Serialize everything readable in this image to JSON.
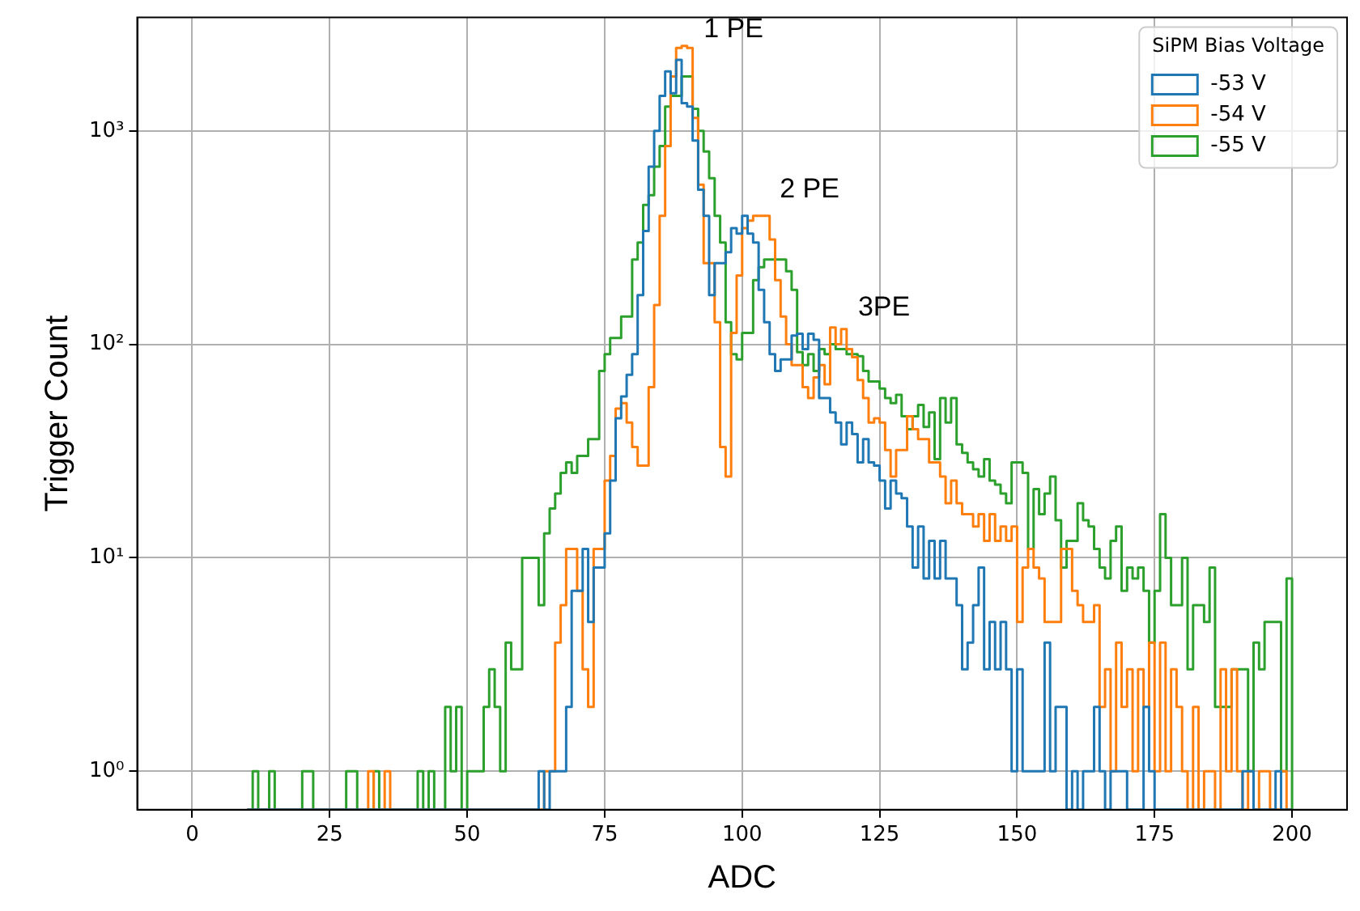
{
  "chart_data": {
    "type": "histogram",
    "xlabel": "ADC",
    "ylabel": "Trigger Count",
    "legend_title": "SiPM Bias Voltage",
    "legend": "top right",
    "grid": true,
    "log": "y",
    "bins": [
      10,
      11,
      12,
      13,
      14,
      15,
      16,
      17,
      18,
      19,
      20,
      21,
      22,
      23,
      24,
      25,
      26,
      27,
      28,
      29,
      30,
      31,
      32,
      33,
      34,
      35,
      36,
      37,
      38,
      39,
      40,
      41,
      42,
      43,
      44,
      45,
      46,
      47,
      48,
      49,
      50,
      51,
      52,
      53,
      54,
      55,
      56,
      57,
      58,
      59,
      60,
      61,
      62,
      63,
      64,
      65,
      66,
      67,
      68,
      69,
      70,
      71,
      72,
      73,
      74,
      75,
      76,
      77,
      78,
      79,
      80,
      81,
      82,
      83,
      84,
      85,
      86,
      87,
      88,
      89,
      90,
      91,
      92,
      93,
      94,
      95,
      96,
      97,
      98,
      99,
      100,
      101,
      102,
      103,
      104,
      105,
      106,
      107,
      108,
      109,
      110,
      111,
      112,
      113,
      114,
      115,
      116,
      117,
      118,
      119,
      120,
      121,
      122,
      123,
      124,
      125,
      126,
      127,
      128,
      129,
      130,
      131,
      132,
      133,
      134,
      135,
      136,
      137,
      138,
      139,
      140,
      141,
      142,
      143,
      144,
      145,
      146,
      147,
      148,
      149,
      150,
      151,
      152,
      153,
      154,
      155,
      156,
      157,
      158,
      159,
      160,
      161,
      162,
      163,
      164,
      165,
      166,
      167,
      168,
      169,
      170,
      171,
      172,
      173,
      174,
      175,
      176,
      177,
      178,
      179,
      180,
      181,
      182,
      183,
      184,
      185,
      186,
      187,
      188,
      189,
      190,
      191,
      192,
      193,
      194,
      195,
      196,
      197,
      198,
      199,
      200
    ],
    "series": [
      {
        "name": "-53 V",
        "color": "#1f77b4",
        "values": [
          null,
          null,
          null,
          null,
          null,
          null,
          null,
          null,
          null,
          null,
          null,
          null,
          null,
          null,
          null,
          null,
          null,
          null,
          null,
          null,
          null,
          null,
          null,
          null,
          null,
          null,
          null,
          null,
          null,
          null,
          null,
          null,
          null,
          null,
          null,
          null,
          null,
          null,
          null,
          null,
          null,
          null,
          null,
          null,
          null,
          null,
          null,
          null,
          null,
          null,
          null,
          null,
          null,
          1,
          null,
          1,
          1,
          1,
          2,
          7,
          7,
          11,
          5,
          9,
          9,
          13,
          23,
          45,
          57,
          72,
          90,
          170,
          340,
          680,
          1000,
          1460,
          1900,
          1500,
          2150,
          1350,
          1300,
          900,
          530,
          400,
          170,
          240,
          240,
          270,
          350,
          330,
          400,
          330,
          300,
          180,
          127,
          90,
          75,
          85,
          85,
          110,
          112,
          95,
          112,
          105,
          56,
          56,
          48,
          43,
          34,
          43,
          38,
          28,
          36,
          28,
          27,
          23,
          17,
          23,
          20,
          19,
          14,
          9,
          14,
          8,
          12,
          8,
          12,
          8,
          8,
          6,
          3,
          4,
          6,
          9,
          3,
          5,
          3,
          5,
          3,
          1,
          3,
          1,
          1,
          1,
          1,
          4,
          1,
          2,
          2,
          null,
          1,
          null,
          1,
          1,
          2,
          1,
          null,
          1,
          1,
          1,
          null,
          null,
          null,
          2,
          1,
          null,
          null,
          null,
          null,
          null,
          null,
          null,
          null,
          null,
          null,
          null,
          null,
          null,
          null,
          null,
          null,
          1,
          1,
          null,
          null,
          null,
          null,
          1,
          null,
          null
        ]
      },
      {
        "name": "-54 V",
        "color": "#ff7f0e",
        "values": [
          null,
          null,
          null,
          null,
          null,
          null,
          null,
          null,
          null,
          null,
          null,
          null,
          null,
          null,
          null,
          null,
          null,
          null,
          null,
          null,
          null,
          null,
          1,
          null,
          null,
          1,
          null,
          null,
          null,
          null,
          null,
          null,
          null,
          null,
          null,
          null,
          null,
          null,
          null,
          null,
          null,
          null,
          null,
          null,
          null,
          null,
          null,
          null,
          null,
          null,
          null,
          null,
          null,
          null,
          1,
          1,
          4,
          6,
          11,
          11,
          7,
          3,
          2,
          11,
          11,
          23,
          30,
          50,
          53,
          43,
          33,
          27,
          27,
          63,
          153,
          400,
          850,
          1800,
          2450,
          2500,
          2450,
          1150,
          560,
          240,
          240,
          127,
          33,
          24,
          113,
          210,
          350,
          380,
          400,
          400,
          400,
          310,
          200,
          135,
          100,
          80,
          80,
          63,
          56,
          70,
          80,
          65,
          120,
          100,
          118,
          95,
          87,
          68,
          56,
          43,
          45,
          43,
          32,
          24,
          32,
          32,
          46,
          40,
          36,
          36,
          28,
          28,
          24,
          18,
          23,
          18,
          16,
          16,
          14,
          16,
          12,
          16,
          12,
          14,
          12,
          14,
          5,
          9,
          11,
          9,
          8,
          5,
          5,
          5,
          11,
          11,
          7,
          6,
          5,
          5,
          6,
          2,
          3,
          1,
          4,
          2,
          3,
          1,
          3,
          2,
          4,
          1,
          4,
          1,
          3,
          2,
          1,
          null,
          2,
          null,
          1,
          1,
          null,
          3,
          1,
          3,
          1,
          null,
          1,
          null,
          1,
          1,
          null,
          null,
          1,
          null
        ]
      },
      {
        "name": "-55 V",
        "color": "#2ca02c",
        "values": [
          null,
          1,
          null,
          null,
          1,
          null,
          null,
          null,
          null,
          null,
          1,
          1,
          null,
          null,
          null,
          null,
          null,
          null,
          1,
          1,
          null,
          null,
          null,
          1,
          null,
          null,
          null,
          null,
          null,
          null,
          null,
          1,
          null,
          1,
          null,
          null,
          2,
          1,
          2,
          null,
          1,
          1,
          1,
          2,
          3,
          2,
          1,
          4,
          3,
          3,
          10,
          10,
          10,
          6,
          13,
          17,
          20,
          25,
          28,
          25,
          30,
          30,
          36,
          36,
          75,
          90,
          107,
          107,
          135,
          135,
          250,
          300,
          450,
          500,
          680,
          850,
          1300,
          1460,
          1460,
          1800,
          1800,
          1270,
          1000,
          800,
          600,
          400,
          300,
          127,
          90,
          85,
          113,
          113,
          200,
          230,
          250,
          250,
          250,
          250,
          220,
          180,
          92,
          80,
          90,
          75,
          95,
          90,
          100,
          95,
          95,
          90,
          90,
          88,
          75,
          67,
          67,
          62,
          56,
          53,
          58,
          46,
          40,
          46,
          52,
          41,
          48,
          29,
          56,
          43,
          56,
          34,
          31,
          28,
          26,
          24,
          29,
          23,
          22,
          20,
          18,
          28,
          28,
          25,
          11,
          21,
          16,
          20,
          24,
          15,
          9,
          12,
          12,
          18,
          15,
          14,
          11,
          9,
          8,
          12,
          14,
          7,
          9,
          8,
          9,
          7,
          4,
          7,
          16,
          10,
          6,
          6,
          10,
          3,
          6,
          6,
          5,
          9,
          2,
          2,
          2,
          3,
          3,
          3,
          1,
          4,
          3,
          5,
          5,
          5,
          1,
          8
        ]
      }
    ],
    "xlim": [
      -10,
      210
    ],
    "xticks": [
      0,
      25,
      50,
      75,
      100,
      125,
      150,
      175,
      200
    ],
    "ylim": [
      0.66,
      3400
    ],
    "yticks": [
      {
        "value": 1,
        "label": "10⁰"
      },
      {
        "value": 10,
        "label": "10¹"
      },
      {
        "value": 100,
        "label": "10²"
      },
      {
        "value": 1000,
        "label": "10³"
      }
    ],
    "annotations": [
      "1 PE",
      "2 PE",
      "3PE"
    ]
  }
}
